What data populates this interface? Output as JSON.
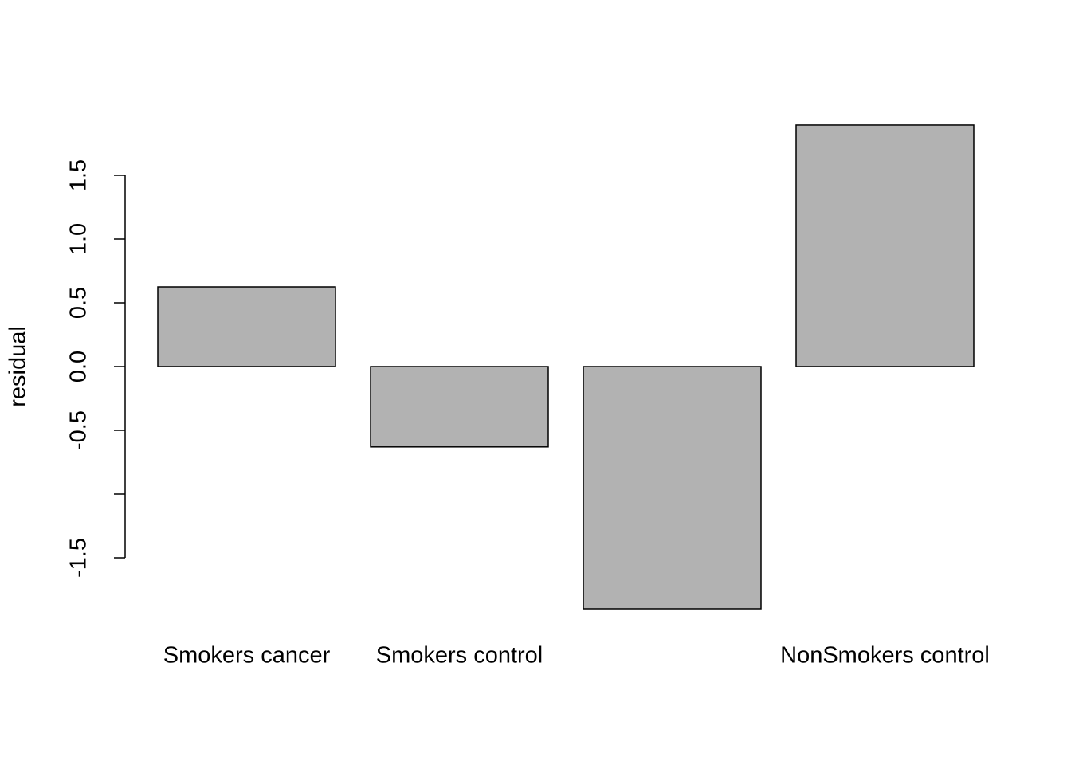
{
  "chart_data": {
    "type": "bar",
    "y_label": "residual",
    "categories": [
      "Smokers cancer",
      "Smokers control",
      null,
      "NonSmokers control"
    ],
    "values": [
      0.625,
      -0.63,
      -1.9,
      1.894
    ],
    "color": "#b2b2b2",
    "ylim": [
      -2.05,
      2.05
    ],
    "yticks": [
      {
        "value": -1.5,
        "label": "-1.5"
      },
      {
        "value": -1,
        "label": null
      },
      -0.5,
      {
        "value": 0,
        "label": "0.0"
      },
      0.5,
      {
        "value": 1,
        "label": "1.0"
      },
      1.5
    ],
    "grid": false
  }
}
